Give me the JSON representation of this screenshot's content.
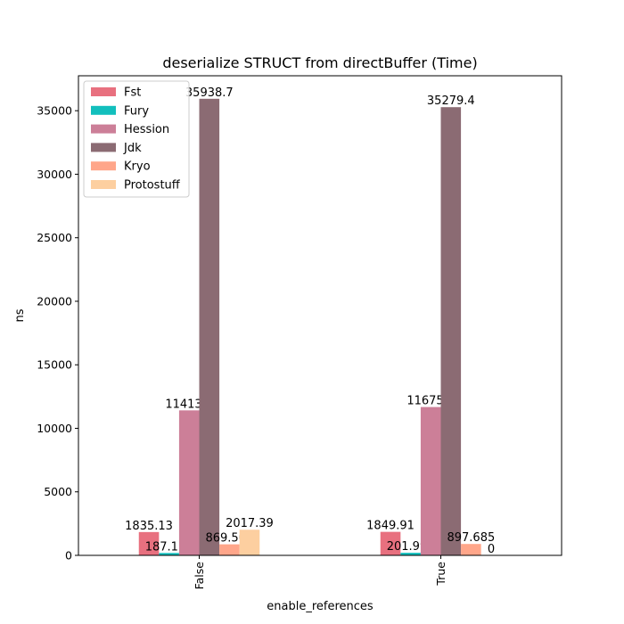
{
  "chart_data": {
    "type": "bar",
    "title": "deserialize STRUCT from directBuffer (Time)",
    "xlabel": "enable_references",
    "ylabel": "ns",
    "categories": [
      "False",
      "True"
    ],
    "ylim": [
      0,
      37750
    ],
    "yticks": [
      0,
      5000,
      10000,
      15000,
      20000,
      25000,
      30000,
      35000
    ],
    "ytick_labels": [
      "0",
      "5000",
      "10000",
      "15000",
      "20000",
      "25000",
      "30000",
      "35000"
    ],
    "grid": false,
    "legend_position": "top-left",
    "series": [
      {
        "name": "Fst",
        "color": "#e8707f",
        "values": [
          1835.13,
          1849.91
        ],
        "labels": [
          "1835.13",
          "1849.91"
        ]
      },
      {
        "name": "Fury",
        "color": "#12bfbd",
        "values": [
          187.115,
          201.992
        ],
        "labels": [
          "187.115",
          "201.992"
        ]
      },
      {
        "name": "Hession",
        "color": "#cc7f98",
        "values": [
          11413.2,
          11675.4
        ],
        "labels": [
          "11413.2",
          "11675.4"
        ]
      },
      {
        "name": "Jdk",
        "color": "#8b6b73",
        "values": [
          35938.7,
          35279.4
        ],
        "labels": [
          "35938.7",
          "35279.4"
        ]
      },
      {
        "name": "Kryo",
        "color": "#ffa68a",
        "values": [
          869.501,
          897.685
        ],
        "labels": [
          "869.501",
          "897.685"
        ]
      },
      {
        "name": "Protostuff",
        "color": "#fdcfa0",
        "values": [
          2017.39,
          0
        ],
        "labels": [
          "2017.39",
          "0"
        ]
      }
    ]
  }
}
